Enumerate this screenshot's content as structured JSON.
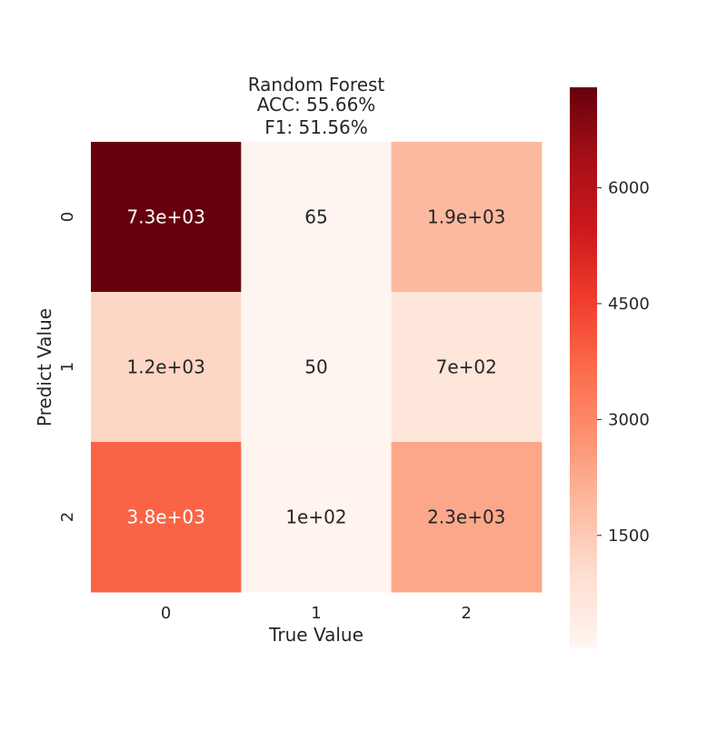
{
  "chart_data": {
    "type": "heatmap",
    "title_lines": [
      "Random Forest",
      "ACC: 55.66%",
      "F1: 51.56%"
    ],
    "xlabel": "True Value",
    "ylabel": "Predict Value",
    "x_categories": [
      "0",
      "1",
      "2"
    ],
    "y_categories": [
      "0",
      "1",
      "2"
    ],
    "values": [
      [
        7300,
        65,
        1900
      ],
      [
        1200,
        50,
        700
      ],
      [
        3800,
        100,
        2300
      ]
    ],
    "cell_labels": [
      [
        "7.3e+03",
        "65",
        "1.9e+03"
      ],
      [
        "1.2e+03",
        "50",
        "7e+02"
      ],
      [
        "3.8e+03",
        "1e+02",
        "2.3e+03"
      ]
    ],
    "colormap": "Reds",
    "color_range": [
      50,
      7300
    ],
    "colorbar": {
      "ticks": [
        1500,
        3000,
        4500,
        6000
      ],
      "tick_labels": [
        "1500",
        "3000",
        "4500",
        "6000"
      ]
    }
  }
}
